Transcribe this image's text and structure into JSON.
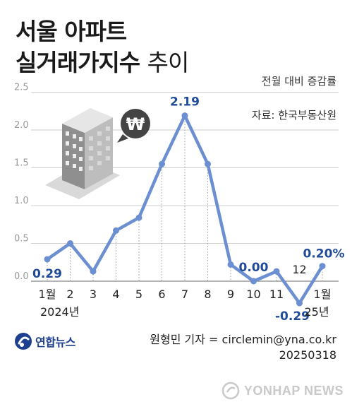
{
  "title": {
    "line1": "서울 아파트",
    "line2_bold": "실거래가지수",
    "line2_light": "추이"
  },
  "unit_note": "전월 대비 증감률",
  "source_note": "자료: 한국부동산원",
  "byline": {
    "reporter": "원형민 기자 = circlemin@yna.co.kr",
    "date": "20250318"
  },
  "brand": "연합뉴스",
  "watermark": "YONHAP NEWS",
  "colors": {
    "line": "#6b8fd1",
    "label": "#1f4b99",
    "grid": "#cfcfcf",
    "axis": "#999999"
  },
  "icons": {
    "building": "building-illustration",
    "won": "won-coin-icon",
    "brand_logo": "yonhap-logo-icon",
    "watermark_logo": "yonhap-watermark-icon"
  },
  "chart_data": {
    "type": "line",
    "title": "서울 아파트 실거래가지수 추이",
    "ylabel": "전월 대비 증감률",
    "xlabel": "",
    "ylim": [
      0,
      2.5
    ],
    "yticks": [
      "0.0",
      "0.5",
      "1.0",
      "1.5",
      "2.0",
      "2.5"
    ],
    "grid": "horizontal",
    "categories": [
      "1월",
      "2",
      "3",
      "4",
      "5",
      "6",
      "7",
      "8",
      "9",
      "10",
      "11",
      "12",
      "1월"
    ],
    "year_labels": [
      {
        "text": "2024년",
        "under_index": 0
      },
      {
        "text": "25년",
        "under_index": 12
      }
    ],
    "values": [
      0.29,
      0.5,
      0.13,
      0.67,
      0.84,
      1.55,
      2.19,
      1.55,
      0.22,
      0.0,
      0.13,
      -0.29,
      0.2
    ],
    "data_labels": [
      {
        "index": 0,
        "text": "0.29"
      },
      {
        "index": 6,
        "text": "2.19"
      },
      {
        "index": 9,
        "text": "0.00"
      },
      {
        "index": 11,
        "text": "-0.29"
      },
      {
        "index": 12,
        "text": "0.20%"
      }
    ]
  }
}
